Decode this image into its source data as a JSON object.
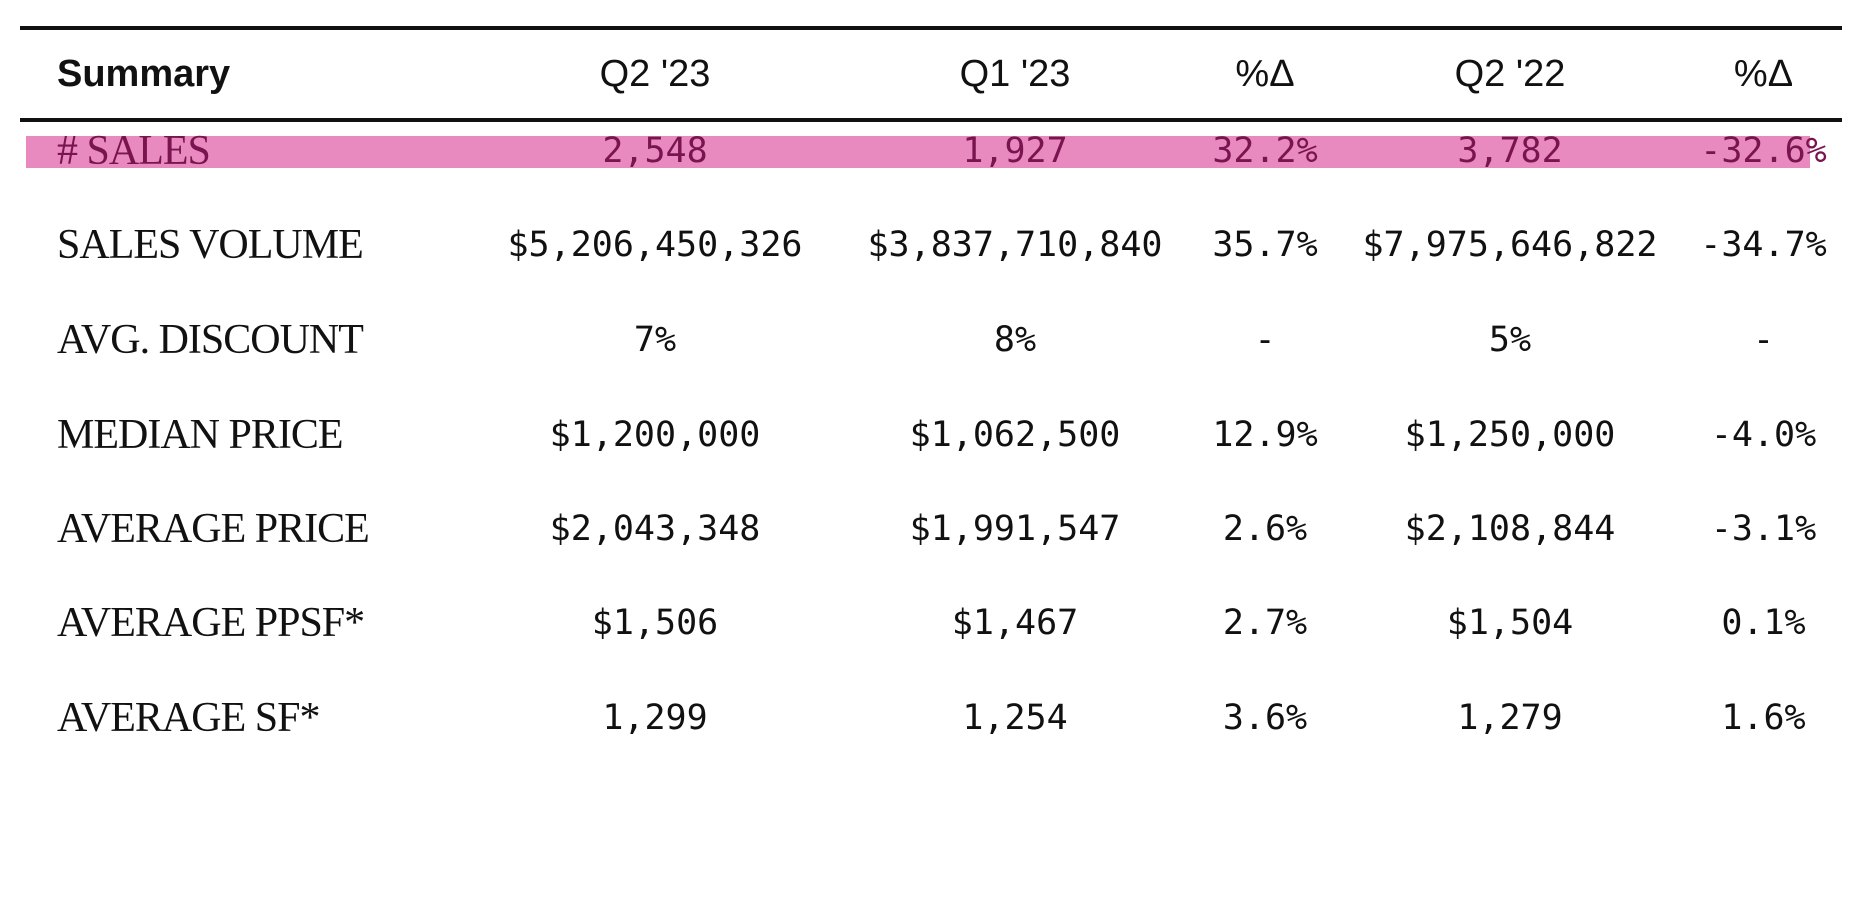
{
  "table": {
    "headers": [
      "Summary",
      "Q2 '23",
      "Q1 '23",
      "%Δ",
      "Q2 '22",
      "%Δ"
    ],
    "highlight_color": "#e88abf",
    "highlight_text_color": "#7a1450",
    "rows": [
      {
        "label": "# SALES",
        "values": [
          "2,548",
          "1,927",
          "32.2%",
          "3,782",
          "-32.6%"
        ]
      },
      {
        "label": "SALES VOLUME",
        "values": [
          "$5,206,450,326",
          "$3,837,710,840",
          "35.7%",
          "$7,975,646,822",
          "-34.7%"
        ]
      },
      {
        "label": "AVG. DISCOUNT",
        "values": [
          "7%",
          "8%",
          "-",
          "5%",
          "-"
        ]
      },
      {
        "label": "MEDIAN PRICE",
        "values": [
          "$1,200,000",
          "$1,062,500",
          "12.9%",
          "$1,250,000",
          "-4.0%"
        ]
      },
      {
        "label": "AVERAGE PRICE",
        "values": [
          "$2,043,348",
          "$1,991,547",
          "2.6%",
          "$2,108,844",
          "-3.1%"
        ]
      },
      {
        "label": "AVERAGE PPSF*",
        "values": [
          "$1,506",
          "$1,467",
          "2.7%",
          "$1,504",
          "0.1%"
        ]
      },
      {
        "label": "AVERAGE SF*",
        "values": [
          "1,299",
          "1,254",
          "3.6%",
          "1,279",
          "1.6%"
        ]
      }
    ]
  }
}
